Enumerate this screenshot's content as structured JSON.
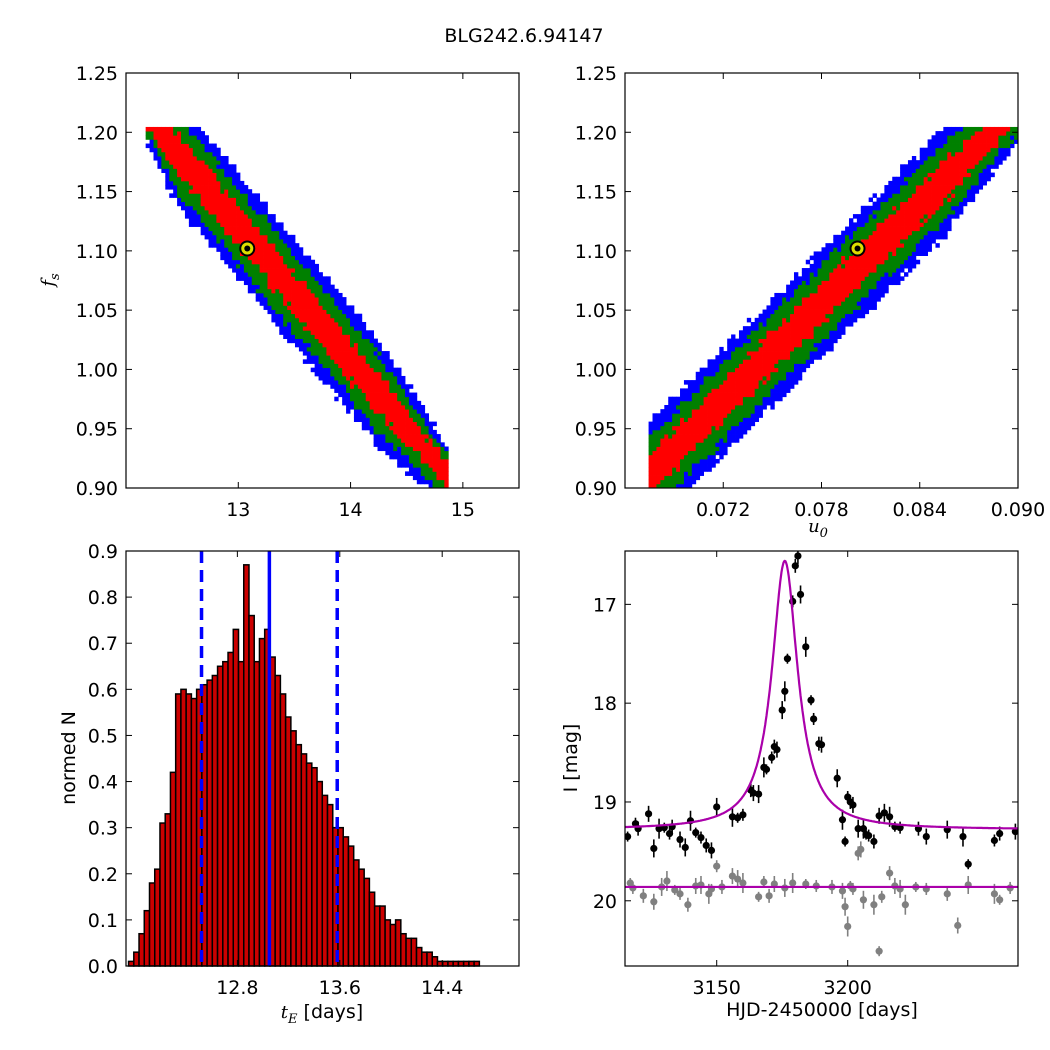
{
  "figure": {
    "title": "BLG242.6.94147",
    "colors": {
      "p1": "#ff0000",
      "p2": "#008000",
      "p3": "#0000ff",
      "best": "#000000",
      "marker_fill": "#dddd00",
      "hist_bar": "#cc0000",
      "hist_lines": "#0000ff",
      "model": "#aa00aa",
      "data1": "#000000",
      "data2": "#808080"
    }
  },
  "chart_data": [
    {
      "type": "heatmap",
      "name": "tE vs fs posterior",
      "xlabel": "",
      "ylabel": "f_s",
      "ylabel_main": "f",
      "ylabel_sub": "s",
      "xlim": [
        12.0,
        15.5
      ],
      "ylim": [
        0.9,
        1.25
      ],
      "xticks": [
        13,
        14,
        15
      ],
      "xtick_labels": [
        "13",
        "14",
        "15"
      ],
      "yticks": [
        0.9,
        0.95,
        1.0,
        1.05,
        1.1,
        1.15,
        1.2,
        1.25
      ],
      "ytick_labels": [
        "0.90",
        "0.95",
        "1.00",
        "1.05",
        "1.10",
        "1.15",
        "1.20",
        "1.25"
      ],
      "band": {
        "start": [
          12.3,
          1.2
        ],
        "end": [
          14.6,
          0.94
        ],
        "extra_end": [
          15.1,
          0.925
        ],
        "width_fs": [
          0.017,
          0.032,
          0.045
        ]
      },
      "best_fit": {
        "x": 13.08,
        "y": 1.102
      }
    },
    {
      "type": "heatmap",
      "name": "u0 vs fs posterior",
      "xlabel": "u_0",
      "xlabel_main": "u",
      "xlabel_sub": "0",
      "ylabel": "",
      "xlim": [
        0.066,
        0.09
      ],
      "ylim": [
        0.9,
        1.25
      ],
      "xticks": [
        0.072,
        0.078,
        0.084,
        0.09
      ],
      "xtick_labels": [
        "0.072",
        "0.078",
        "0.084",
        "0.090"
      ],
      "yticks": [
        0.9,
        0.95,
        1.0,
        1.05,
        1.1,
        1.15,
        1.2,
        1.25
      ],
      "ytick_labels": [
        "0.90",
        "0.95",
        "1.00",
        "1.05",
        "1.10",
        "1.15",
        "1.20",
        "1.25"
      ],
      "band": {
        "start": [
          0.0685,
          0.925
        ],
        "end": [
          0.0885,
          1.2
        ],
        "width_fs": [
          0.017,
          0.032,
          0.045
        ]
      },
      "best_fit": {
        "x": 0.0802,
        "y": 1.102
      }
    },
    {
      "type": "bar",
      "name": "tE histogram",
      "xlabel_main": "t",
      "xlabel_sub": "E",
      "xlabel_rest": " [days]",
      "ylabel": "normed N",
      "xlim": [
        11.93,
        15.0
      ],
      "ylim": [
        0.0,
        0.9
      ],
      "xticks": [
        12.8,
        13.6,
        14.4
      ],
      "xtick_labels": [
        "12.8",
        "13.6",
        "14.4"
      ],
      "yticks": [
        0.0,
        0.1,
        0.2,
        0.3,
        0.4,
        0.5,
        0.6,
        0.7,
        0.8,
        0.9
      ],
      "ytick_labels": [
        "0.0",
        "0.1",
        "0.2",
        "0.3",
        "0.4",
        "0.5",
        "0.6",
        "0.7",
        "0.8",
        "0.9"
      ],
      "bin_start": 11.95,
      "bin_width": 0.0409,
      "values": [
        0.01,
        0.03,
        0.07,
        0.12,
        0.18,
        0.21,
        0.31,
        0.33,
        0.42,
        0.59,
        0.6,
        0.59,
        0.58,
        0.6,
        0.61,
        0.62,
        0.63,
        0.65,
        0.66,
        0.68,
        0.73,
        0.66,
        0.87,
        0.76,
        0.66,
        0.71,
        0.73,
        0.67,
        0.63,
        0.59,
        0.54,
        0.51,
        0.48,
        0.46,
        0.44,
        0.43,
        0.4,
        0.37,
        0.35,
        0.3,
        0.3,
        0.28,
        0.26,
        0.23,
        0.21,
        0.19,
        0.16,
        0.13,
        0.13,
        0.1,
        0.09,
        0.1,
        0.07,
        0.06,
        0.06,
        0.04,
        0.03,
        0.03,
        0.02,
        0.01,
        0.01,
        0.01,
        0.01,
        0.01,
        0.01,
        0.01,
        0.01
      ],
      "vlines": {
        "median": 13.05,
        "lower": 12.52,
        "upper": 13.58
      }
    },
    {
      "type": "scatter",
      "name": "light curve",
      "xlabel": "HJD-2450000 [days]",
      "ylabel": "I [mag]",
      "xlim": [
        3115,
        3265
      ],
      "ylim": [
        20.66,
        16.46
      ],
      "xticks": [
        3150,
        3200
      ],
      "xtick_labels": [
        "3150",
        "3200"
      ],
      "yticks": [
        17,
        18,
        19,
        20
      ],
      "ytick_labels": [
        "17",
        "18",
        "19",
        "20"
      ],
      "model": {
        "t0": 3176.0,
        "base": 19.28,
        "amp": 2.72,
        "tau": 6.0,
        "baseline2": 19.86
      },
      "series": [
        {
          "points": [
            [
              3116,
              19.35
            ],
            [
              3119,
              19.22
            ],
            [
              3120,
              19.27
            ],
            [
              3124,
              19.12
            ],
            [
              3126,
              19.47
            ],
            [
              3128,
              19.27
            ],
            [
              3130,
              19.26
            ],
            [
              3132,
              19.32
            ],
            [
              3133,
              19.25
            ],
            [
              3136,
              19.38
            ],
            [
              3138,
              19.46
            ],
            [
              3140,
              19.19
            ],
            [
              3142,
              19.31
            ],
            [
              3144,
              19.36
            ],
            [
              3146,
              19.44
            ],
            [
              3148,
              19.49
            ],
            [
              3150,
              19.05
            ],
            [
              3156,
              19.15
            ],
            [
              3158,
              19.16
            ],
            [
              3160,
              19.13
            ],
            [
              3163,
              18.88
            ],
            [
              3164,
              18.91
            ],
            [
              3166,
              18.92
            ],
            [
              3168,
              18.65
            ],
            [
              3169,
              18.67
            ],
            [
              3171,
              18.55
            ],
            [
              3172,
              18.44
            ],
            [
              3173,
              18.47
            ],
            [
              3175,
              18.07
            ],
            [
              3176,
              17.88
            ],
            [
              3177,
              17.55
            ],
            [
              3179,
              16.97
            ],
            [
              3180,
              16.61
            ],
            [
              3181,
              16.51
            ],
            [
              3182,
              16.9
            ],
            [
              3184,
              17.43
            ],
            [
              3186,
              17.97
            ],
            [
              3187,
              18.16
            ],
            [
              3189,
              18.41
            ],
            [
              3190,
              18.42
            ],
            [
              3196,
              18.76
            ],
            [
              3198,
              19.18
            ],
            [
              3199,
              19.4
            ],
            [
              3200,
              18.95
            ],
            [
              3201,
              19.0
            ],
            [
              3202,
              19.03
            ],
            [
              3204,
              19.27
            ],
            [
              3206,
              19.27
            ],
            [
              3207,
              19.33
            ],
            [
              3208,
              19.34
            ],
            [
              3210,
              19.4
            ],
            [
              3212,
              19.14
            ],
            [
              3214,
              19.11
            ],
            [
              3216,
              19.15
            ],
            [
              3218,
              19.25
            ],
            [
              3220,
              19.26
            ],
            [
              3227,
              19.27
            ],
            [
              3230,
              19.35
            ],
            [
              3238,
              19.28
            ],
            [
              3244,
              19.35
            ],
            [
              3246,
              19.63
            ],
            [
              3256,
              19.39
            ],
            [
              3258,
              19.32
            ],
            [
              3264,
              19.3
            ]
          ]
        },
        {
          "points": [
            [
              3117,
              19.82
            ],
            [
              3118,
              19.87
            ],
            [
              3122,
              19.95
            ],
            [
              3126,
              20.01
            ],
            [
              3129,
              19.86
            ],
            [
              3131,
              19.8
            ],
            [
              3134,
              19.89
            ],
            [
              3136,
              19.93
            ],
            [
              3139,
              20.04
            ],
            [
              3142,
              19.85
            ],
            [
              3144,
              19.84
            ],
            [
              3147,
              19.93
            ],
            [
              3148,
              19.88
            ],
            [
              3150,
              19.65
            ],
            [
              3152,
              19.86
            ],
            [
              3156,
              19.75
            ],
            [
              3158,
              19.78
            ],
            [
              3160,
              19.82
            ],
            [
              3166,
              19.96
            ],
            [
              3168,
              19.81
            ],
            [
              3170,
              19.95
            ],
            [
              3172,
              19.83
            ],
            [
              3176,
              19.87
            ],
            [
              3179,
              19.82
            ],
            [
              3184,
              19.83
            ],
            [
              3188,
              19.85
            ],
            [
              3194,
              19.86
            ],
            [
              3198,
              19.9
            ],
            [
              3199,
              20.06
            ],
            [
              3200,
              20.26
            ],
            [
              3201,
              19.85
            ],
            [
              3202,
              19.88
            ],
            [
              3204,
              19.52
            ],
            [
              3205,
              19.48
            ],
            [
              3206,
              19.99
            ],
            [
              3210,
              20.04
            ],
            [
              3212,
              20.51
            ],
            [
              3213,
              19.96
            ],
            [
              3216,
              19.72
            ],
            [
              3218,
              19.85
            ],
            [
              3220,
              19.88
            ],
            [
              3222,
              20.04
            ],
            [
              3226,
              19.86
            ],
            [
              3230,
              19.88
            ],
            [
              3238,
              19.93
            ],
            [
              3242,
              20.25
            ],
            [
              3246,
              19.84
            ],
            [
              3256,
              19.93
            ],
            [
              3258,
              19.99
            ],
            [
              3262,
              19.87
            ]
          ]
        }
      ]
    }
  ]
}
